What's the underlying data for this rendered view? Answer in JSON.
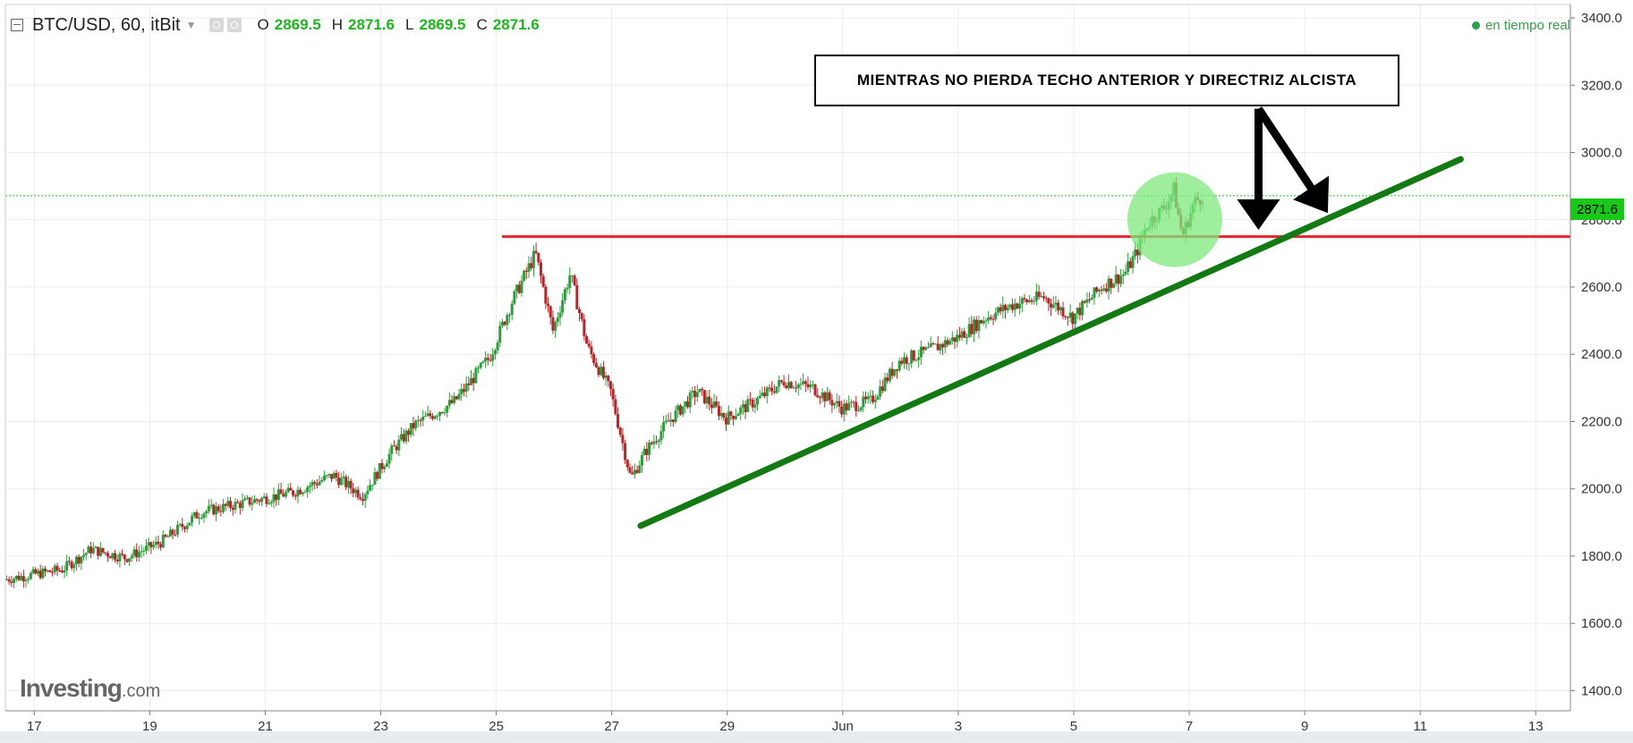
{
  "header": {
    "symbol": "BTC/USD, 60, itBit",
    "ohlc": [
      {
        "key": "O",
        "value": "2869.5"
      },
      {
        "key": "H",
        "value": "2871.6"
      },
      {
        "key": "L",
        "value": "2869.5"
      },
      {
        "key": "C",
        "value": "2871.6"
      }
    ]
  },
  "status": {
    "realtime": "en tiempo real"
  },
  "annotation": {
    "text": "MIENTRAS NO PIERDA TECHO ANTERIOR Y DIRECTRIZ ALCISTA"
  },
  "logo": {
    "main": "Investing",
    "domain": ".com"
  },
  "colors": {
    "up": "#2f9c3b",
    "down": "#b3262a",
    "last_price_line": "#19c719",
    "resistance": "#e8232a",
    "trendline": "#137a13",
    "highlight_circle": "#7ee87e"
  },
  "chart_data": {
    "type": "candlestick",
    "title": "BTC/USD, 60, itBit",
    "y_ticks": [
      "1400.0",
      "1600.0",
      "1800.0",
      "2000.0",
      "2200.0",
      "2400.0",
      "2600.0",
      "2800.0",
      "3000.0",
      "3200.0",
      "3400.0"
    ],
    "ylim": [
      1340,
      3440
    ],
    "x_ticks": [
      "17",
      "19",
      "21",
      "23",
      "25",
      "27",
      "29",
      "Jun",
      "3",
      "5",
      "7",
      "9",
      "11",
      "13"
    ],
    "x_tick_days": [
      17,
      19,
      21,
      23,
      25,
      27,
      29,
      31,
      33,
      35,
      37,
      39,
      41,
      43
    ],
    "xlim": [
      16.5,
      43.6
    ],
    "last_price": {
      "label": "2871.6",
      "value": 2871.6
    },
    "close_path": [
      [
        16.5,
        1730
      ],
      [
        17.5,
        1760
      ],
      [
        18.0,
        1820
      ],
      [
        18.6,
        1795
      ],
      [
        19.2,
        1840
      ],
      [
        19.9,
        1930
      ],
      [
        20.7,
        1960
      ],
      [
        21.5,
        1990
      ],
      [
        22.2,
        2040
      ],
      [
        22.7,
        1980
      ],
      [
        23.2,
        2110
      ],
      [
        23.6,
        2190
      ],
      [
        24.3,
        2260
      ],
      [
        24.9,
        2390
      ],
      [
        25.3,
        2560
      ],
      [
        25.7,
        2700
      ],
      [
        26.0,
        2470
      ],
      [
        26.3,
        2640
      ],
      [
        26.6,
        2420
      ],
      [
        27.0,
        2290
      ],
      [
        27.35,
        2030
      ],
      [
        27.6,
        2110
      ],
      [
        28.0,
        2200
      ],
      [
        28.5,
        2290
      ],
      [
        29.0,
        2210
      ],
      [
        29.5,
        2260
      ],
      [
        30.0,
        2320
      ],
      [
        30.5,
        2300
      ],
      [
        31.0,
        2240
      ],
      [
        31.5,
        2260
      ],
      [
        32.0,
        2380
      ],
      [
        32.5,
        2410
      ],
      [
        33.0,
        2450
      ],
      [
        33.5,
        2510
      ],
      [
        34.0,
        2550
      ],
      [
        34.5,
        2570
      ],
      [
        35.0,
        2510
      ],
      [
        35.5,
        2600
      ],
      [
        35.9,
        2640
      ],
      [
        36.1,
        2700
      ],
      [
        36.3,
        2790
      ],
      [
        36.6,
        2840
      ],
      [
        36.75,
        2890
      ],
      [
        36.9,
        2750
      ],
      [
        37.1,
        2850
      ],
      [
        37.25,
        2871
      ]
    ],
    "resistance_line": {
      "value": 2750,
      "x_start": 25.1,
      "x_end": 43.6
    },
    "trendline": {
      "x_start": 27.5,
      "y_start": 1890,
      "x_end": 41.7,
      "y_end": 2980
    },
    "highlight": {
      "x": 36.75,
      "y": 2800
    },
    "arrows": [
      {
        "from_x": 38.2,
        "from_y": 3130,
        "to_x": 38.2,
        "to_y": 2770
      },
      {
        "from_x": 38.2,
        "from_y": 3130,
        "to_x": 39.4,
        "to_y": 2820
      }
    ]
  }
}
